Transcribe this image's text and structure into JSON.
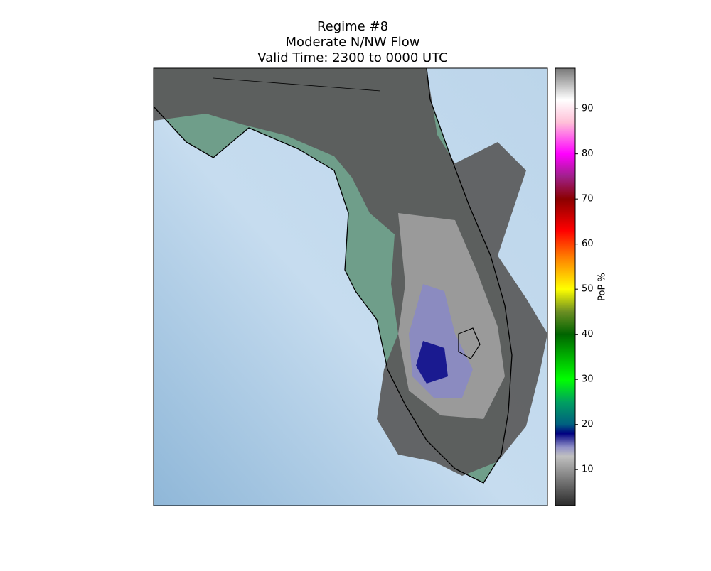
{
  "title": [
    "Regime #8",
    "Moderate N/NW Flow",
    "Valid Time: 2300 to 0000 UTC"
  ],
  "colorbar": {
    "label": "PoP %",
    "lim": [
      2,
      99
    ],
    "ticks": [
      10,
      20,
      30,
      40,
      50,
      60,
      70,
      80,
      90
    ]
  }
}
